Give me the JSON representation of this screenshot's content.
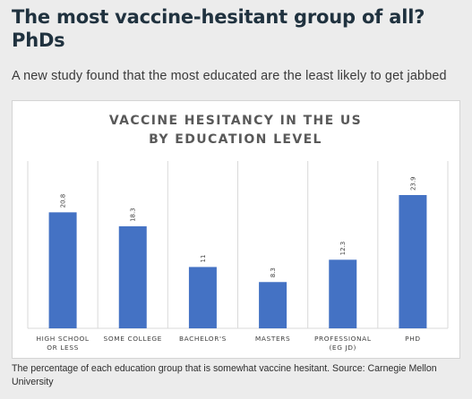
{
  "article": {
    "headline": "The most vaccine-hesitant group of all? PhDs",
    "subheadline": "A new study found that the most educated are the least likely to get jabbed",
    "caption": "The percentage of each education group that is somewhat vaccine hesitant. Source: Carnegie Mellon University"
  },
  "colors": {
    "bar": "#4472c4",
    "gridline": "#d9d9d9",
    "headline": "#20323f"
  },
  "chart_data": {
    "type": "bar",
    "title_lines": [
      "VACCINE HESITANCY IN THE US",
      "BY EDUCATION LEVEL"
    ],
    "categories": [
      [
        "HIGH SCHOOL",
        "OR LESS"
      ],
      [
        "SOME COLLEGE"
      ],
      [
        "BACHELOR'S"
      ],
      [
        "MASTERS"
      ],
      [
        "PROFESSIONAL",
        "(EG JD)"
      ],
      [
        "PHD"
      ]
    ],
    "values": [
      20.8,
      18.3,
      11,
      8.3,
      12.3,
      23.9
    ],
    "value_labels": [
      "20.8",
      "18.3",
      "11",
      "8.3",
      "12.3",
      "23.9"
    ],
    "ylim": [
      0,
      30
    ],
    "grid": true,
    "legend": false,
    "data_label_orientation": "rotated"
  }
}
